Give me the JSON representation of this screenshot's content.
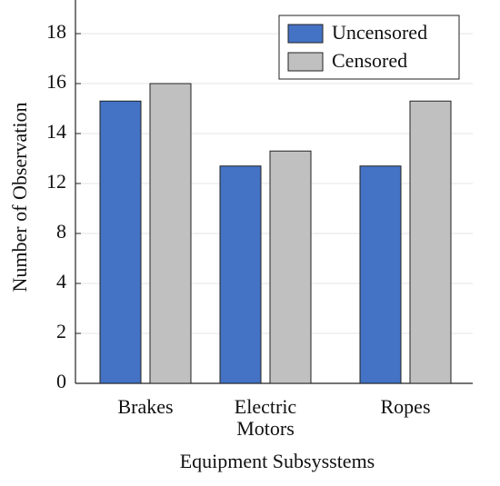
{
  "chart_data": {
    "type": "bar",
    "xlabel": "Equipment Subsysstems",
    "ylabel": "Number of Observation",
    "categories": [
      "Brakes",
      "Electric Motors",
      "Ropes"
    ],
    "series": [
      {
        "name": "Uncensored",
        "color": "#4472c4",
        "values": [
          15.3,
          12.7,
          12.7
        ]
      },
      {
        "name": "Censored",
        "color": "#c0c0c0",
        "values": [
          16,
          13.3,
          15.3
        ]
      }
    ],
    "ylim": [
      0,
      20
    ],
    "yticks": [
      0,
      2,
      4,
      8,
      12,
      14,
      16,
      18
    ],
    "grid": true,
    "legend": "upper right"
  }
}
